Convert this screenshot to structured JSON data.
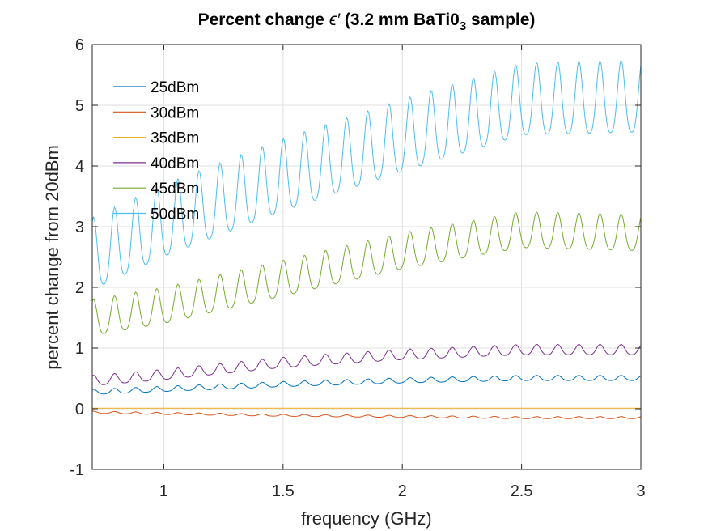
{
  "chart_data": {
    "type": "line",
    "title": {
      "prefix": "Percent change ",
      "symbol": "ϵ′",
      "middle": " (3.2 mm BaTi0",
      "subscript": "3",
      "suffix": " sample)"
    },
    "xlabel": "frequency (GHz)",
    "ylabel": "percent change from 20dBm",
    "xlim": [
      0.7,
      3.0
    ],
    "ylim": [
      -1,
      6
    ],
    "xticks": [
      1,
      1.5,
      2,
      2.5,
      3
    ],
    "yticks": [
      -1,
      0,
      1,
      2,
      3,
      4,
      5,
      6
    ],
    "xtick_labels": [
      "1",
      "1.5",
      "2",
      "2.5",
      "3"
    ],
    "ytick_labels": [
      "-1",
      "0",
      "1",
      "2",
      "3",
      "4",
      "5",
      "6"
    ],
    "grid": true,
    "legend_position": "top-left",
    "oscillation_period_ghz": 0.0885,
    "series": [
      {
        "name": "25dBm",
        "color": "#0072BD",
        "trend_x": [
          0.7,
          1.0,
          1.5,
          2.0,
          2.5,
          3.0
        ],
        "trend_y": [
          0.27,
          0.32,
          0.4,
          0.46,
          0.5,
          0.5
        ],
        "amplitude": 0.05
      },
      {
        "name": "30dBm",
        "color": "#D95319",
        "trend_x": [
          0.7,
          1.0,
          1.5,
          2.0,
          2.5,
          3.0
        ],
        "trend_y": [
          -0.06,
          -0.08,
          -0.11,
          -0.13,
          -0.15,
          -0.15
        ],
        "amplitude": 0.02
      },
      {
        "name": "35dBm",
        "color": "#EDB120",
        "trend_x": [
          0.7,
          1.0,
          1.5,
          2.0,
          2.5,
          3.0
        ],
        "trend_y": [
          0.01,
          0.01,
          0.01,
          0.01,
          0.01,
          0.01
        ],
        "amplitude": 0.0
      },
      {
        "name": "40dBm",
        "color": "#7E2F8E",
        "trend_x": [
          0.7,
          1.0,
          1.5,
          2.0,
          2.5,
          3.0
        ],
        "trend_y": [
          0.45,
          0.55,
          0.75,
          0.88,
          0.96,
          0.96
        ],
        "amplitude": 0.1
      },
      {
        "name": "45dBm",
        "color": "#77AC30",
        "trend_x": [
          0.7,
          1.0,
          1.5,
          2.0,
          2.5,
          3.0
        ],
        "trend_y": [
          1.45,
          1.65,
          2.1,
          2.55,
          2.9,
          2.85
        ],
        "amplitude": 0.35
      },
      {
        "name": "50dBm",
        "color": "#4DBEEE",
        "trend_x": [
          0.7,
          1.0,
          1.5,
          2.0,
          2.5,
          3.0
        ],
        "trend_y": [
          2.45,
          3.0,
          3.75,
          4.4,
          5.0,
          5.05
        ],
        "amplitude": 0.7
      }
    ]
  }
}
